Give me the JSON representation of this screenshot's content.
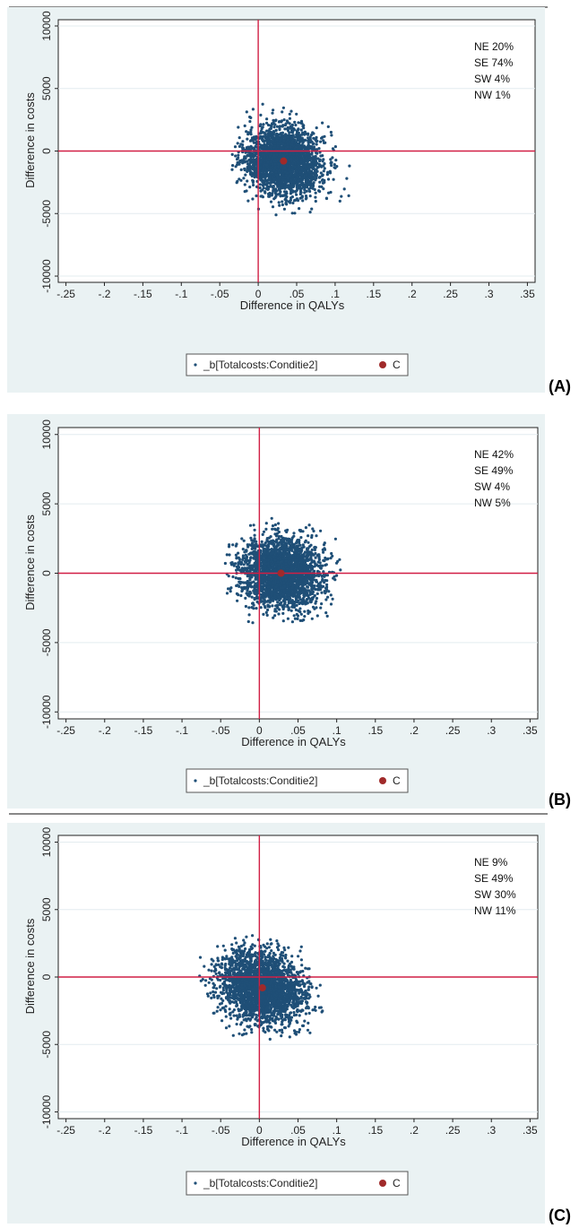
{
  "colors": {
    "scatter": "#1f4f77",
    "reference_lines": "#d11f45",
    "mean_point": "#a02a2a",
    "panel_background": "#eaf2f3"
  },
  "chart_data": [
    {
      "panel_label": "(A)",
      "type": "scatter",
      "xlabel": "Difference in QALYs",
      "ylabel": "Difference in costs",
      "xlim": [
        -0.26,
        0.36
      ],
      "ylim": [
        -10500,
        10500
      ],
      "x_ticks": [
        "-.25",
        "-.2",
        "-.15",
        "-.1",
        "-.05",
        "0",
        ".05",
        ".1",
        ".15",
        ".2",
        ".25",
        ".3",
        ".35"
      ],
      "y_ticks": [
        "-10000",
        "-5000",
        "0",
        "5000",
        "10000"
      ],
      "grid": true,
      "quadrants": [
        "NE 20%",
        "SE 74%",
        "SW 4%",
        "NW 1%"
      ],
      "cloud": {
        "center_x": 0.033,
        "center_y": -800,
        "sd_x": 0.025,
        "sd_y": 1350,
        "correlation": -0.1,
        "min_x": -0.035,
        "max_x": 0.12,
        "min_y": -5400,
        "max_y": 4400
      },
      "mean_point": {
        "x": 0.033,
        "y": -800
      },
      "legend": [
        {
          "label": "_b[Totalcosts:Conditie2]",
          "marker": "small-dot"
        },
        {
          "label": "C",
          "marker": "large-dot"
        }
      ]
    },
    {
      "panel_label": "(B)",
      "type": "scatter",
      "xlabel": "Difference in QALYs",
      "ylabel": "Difference in costs",
      "xlim": [
        -0.26,
        0.36
      ],
      "ylim": [
        -10500,
        10500
      ],
      "x_ticks": [
        "-.25",
        "-.2",
        "-.15",
        "-.1",
        "-.05",
        "0",
        ".05",
        ".1",
        ".15",
        ".2",
        ".25",
        ".3",
        ".35"
      ],
      "y_ticks": [
        "-10000",
        "-5000",
        "0",
        "5000",
        "10000"
      ],
      "grid": true,
      "quadrants": [
        "NE 42%",
        "SE 49%",
        "SW 4%",
        "NW 5%"
      ],
      "cloud": {
        "center_x": 0.028,
        "center_y": 0,
        "sd_x": 0.026,
        "sd_y": 1250,
        "correlation": -0.05,
        "min_x": -0.05,
        "max_x": 0.115,
        "min_y": -3600,
        "max_y": 4400
      },
      "mean_point": {
        "x": 0.028,
        "y": 0
      },
      "legend": [
        {
          "label": "_b[Totalcosts:Conditie2]",
          "marker": "small-dot"
        },
        {
          "label": "C",
          "marker": "large-dot"
        }
      ]
    },
    {
      "panel_label": "(C)",
      "type": "scatter",
      "xlabel": "Difference in QALYs",
      "ylabel": "Difference in costs",
      "xlim": [
        -0.26,
        0.36
      ],
      "ylim": [
        -10500,
        10500
      ],
      "x_ticks": [
        "-.25",
        "-.2",
        "-.15",
        "-.1",
        "-.05",
        "0",
        ".05",
        ".1",
        ".15",
        ".2",
        ".25",
        ".3",
        ".35"
      ],
      "y_ticks": [
        "-10000",
        "-5000",
        "0",
        "5000",
        "10000"
      ],
      "grid": true,
      "quadrants": [
        "NE 9%",
        "SE 49%",
        "SW 30%",
        "NW 11%"
      ],
      "cloud": {
        "center_x": 0.004,
        "center_y": -800,
        "sd_x": 0.027,
        "sd_y": 1350,
        "correlation": -0.15,
        "min_x": -0.095,
        "max_x": 0.09,
        "min_y": -5000,
        "max_y": 3200
      },
      "mean_point": {
        "x": 0.004,
        "y": -800
      },
      "legend": [
        {
          "label": "_b[Totalcosts:Conditie2]",
          "marker": "small-dot"
        },
        {
          "label": "C",
          "marker": "large-dot"
        }
      ]
    }
  ]
}
